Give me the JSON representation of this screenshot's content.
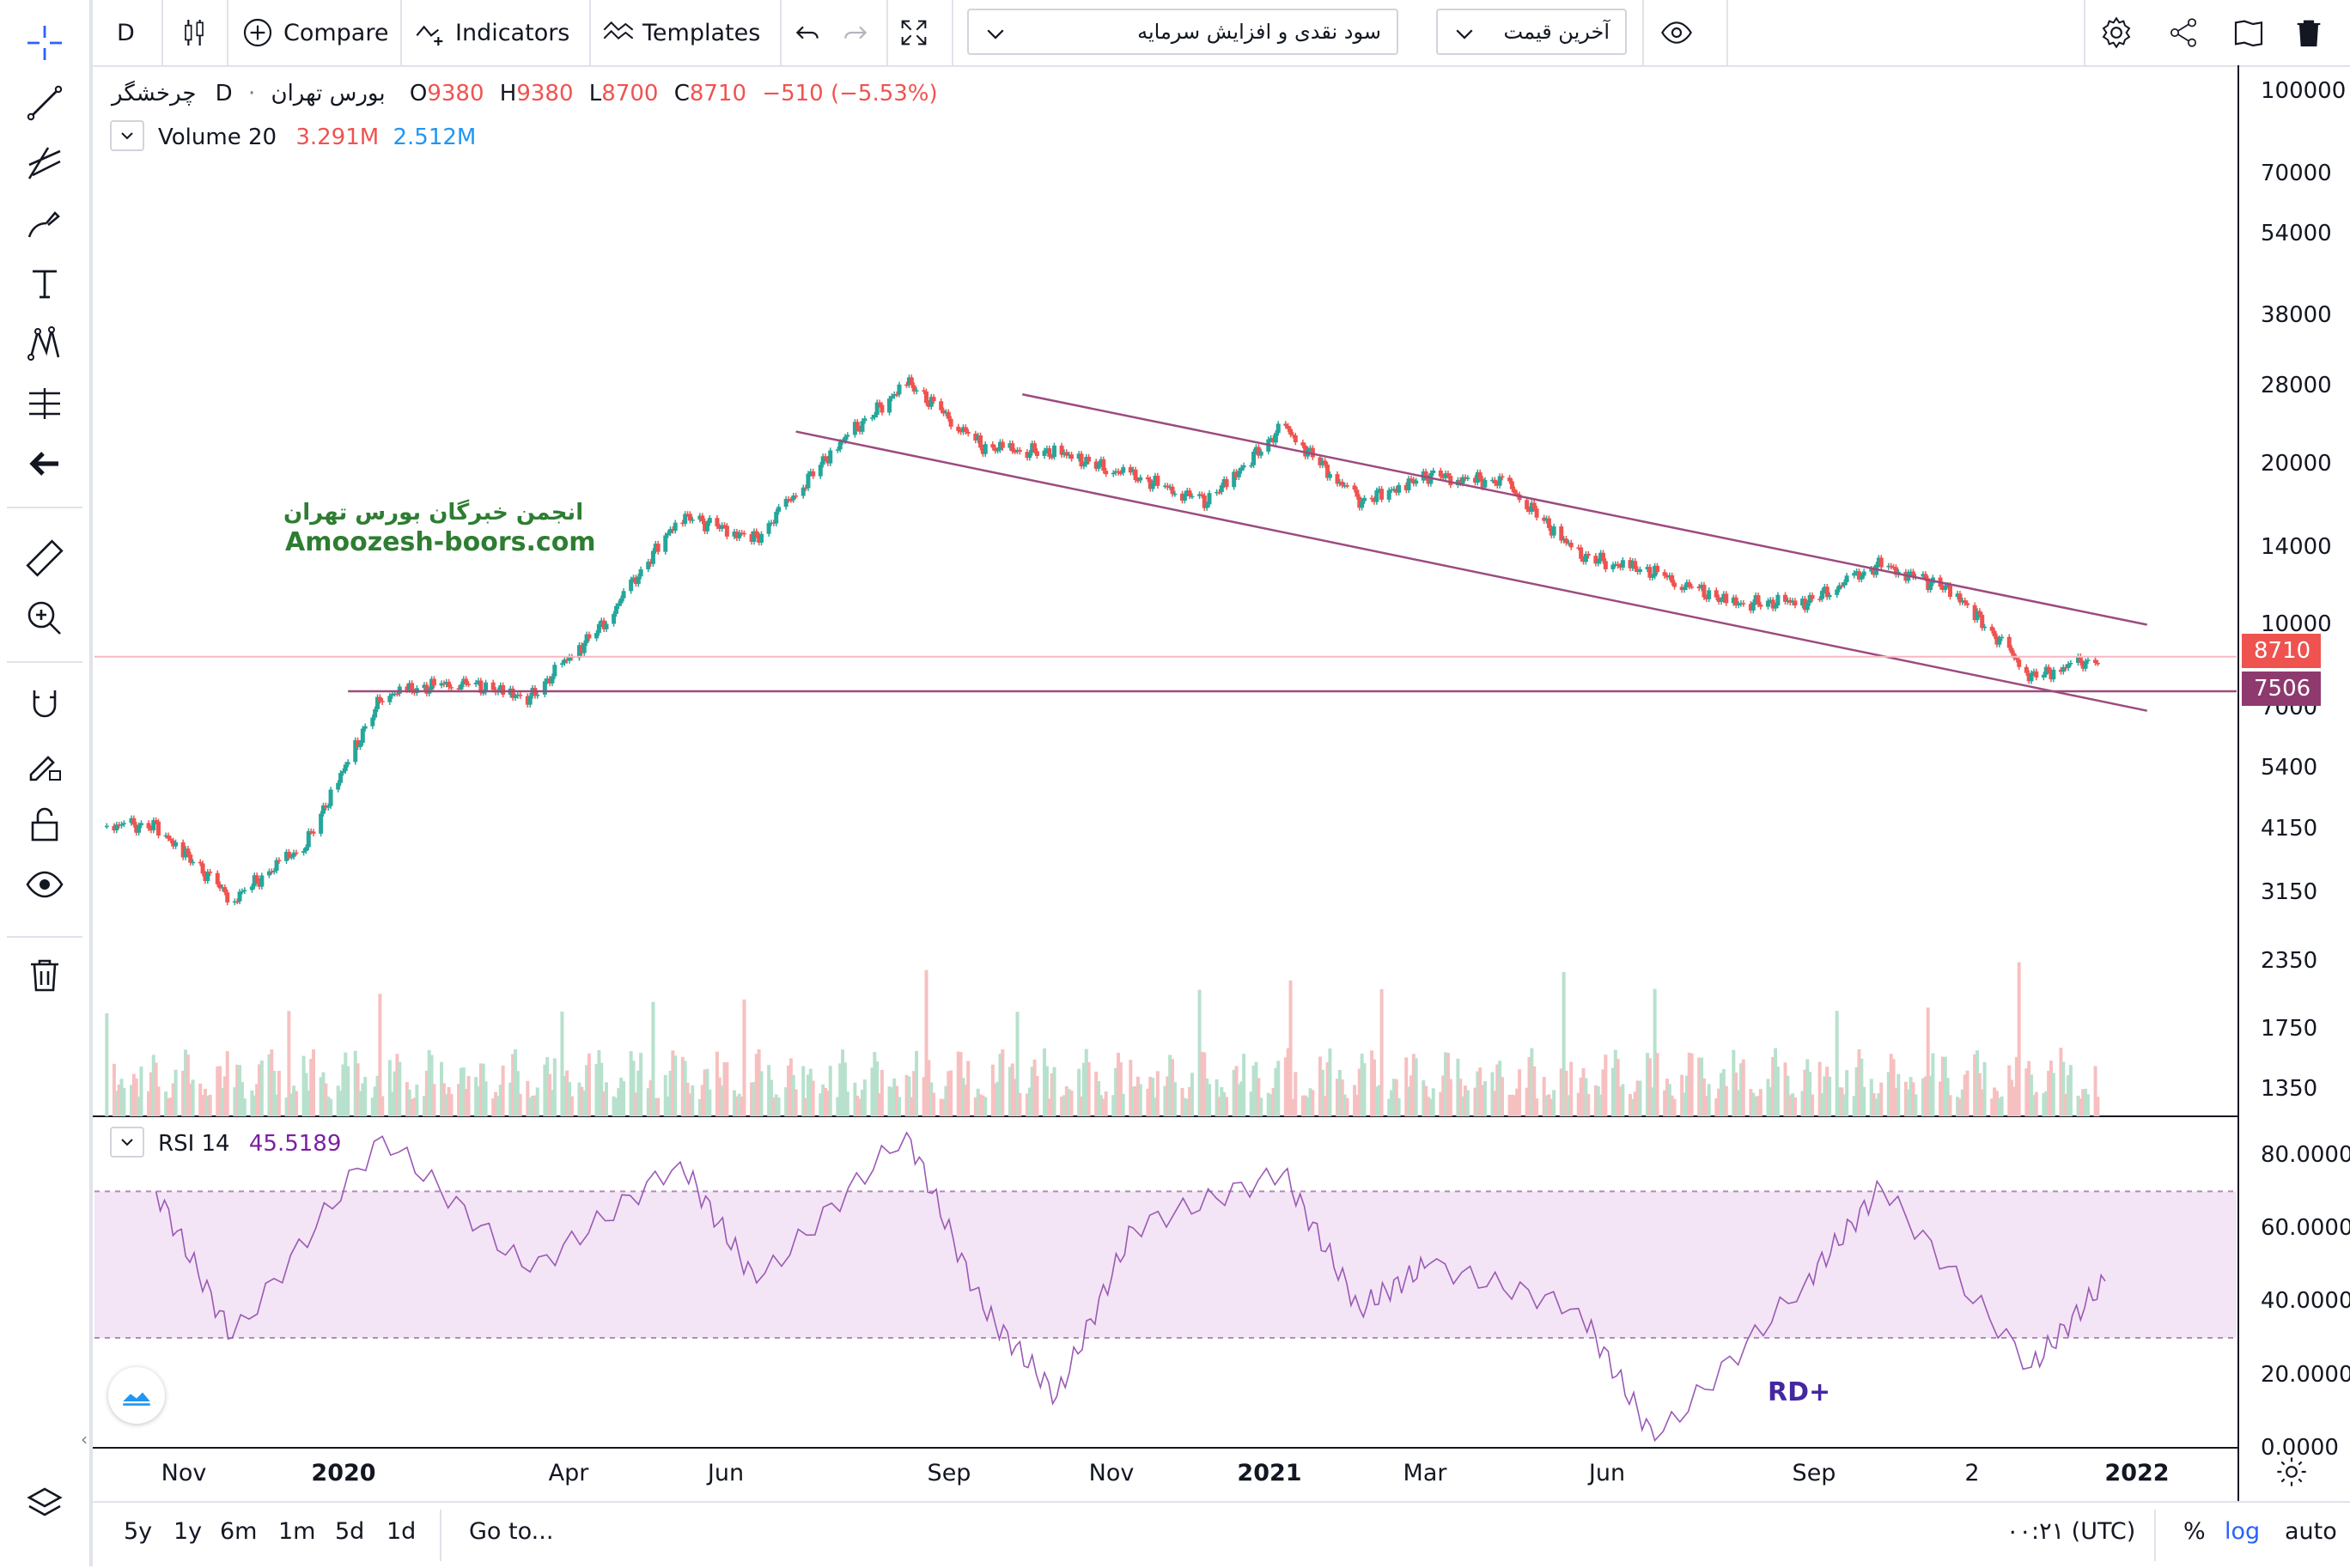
{
  "toolbar": {
    "interval": "D",
    "compare_label": "Compare",
    "indicators_label": "Indicators",
    "templates_label": "Templates",
    "dropdown_left": "سود نقدی و افزایش سرمایه",
    "dropdown_right": "آخرین قیمت"
  },
  "legend": {
    "symbol": "چرخشگر",
    "interval": "D",
    "exchange": "بورس تهران",
    "o_label": "O",
    "o_value": "9380",
    "h_label": "H",
    "h_value": "9380",
    "l_label": "L",
    "l_value": "8700",
    "c_label": "C",
    "c_value": "8710",
    "change": "−510 (−5.53%)",
    "volume_label": "Volume 20",
    "volume_value1": "3.291M",
    "volume_value2": "2.512M",
    "rsi_label": "RSI 14",
    "rsi_value": "45.5189"
  },
  "watermark": {
    "line1": "انجمن خبرگان بورس تهران",
    "line2": "Amoozesh-boors.com",
    "rd": "RD+"
  },
  "price_axis": [
    "100000",
    "70000",
    "54000",
    "38000",
    "28000",
    "20000",
    "14000",
    "10000",
    "7000",
    "5400",
    "4150",
    "3150",
    "2350",
    "1750",
    "1350"
  ],
  "rsi_axis": [
    "80.0000",
    "60.0000",
    "40.0000",
    "20.0000",
    "0.0000"
  ],
  "time_axis": [
    {
      "label": "Nov",
      "bold": false
    },
    {
      "label": "2020",
      "bold": true
    },
    {
      "label": "Apr",
      "bold": false
    },
    {
      "label": "Jun",
      "bold": false
    },
    {
      "label": "Sep",
      "bold": false
    },
    {
      "label": "Nov",
      "bold": false
    },
    {
      "label": "2021",
      "bold": true
    },
    {
      "label": "Mar",
      "bold": false
    },
    {
      "label": "Jun",
      "bold": false
    },
    {
      "label": "Sep",
      "bold": false
    },
    {
      "label": "2",
      "bold": false
    },
    {
      "label": "2022",
      "bold": true
    }
  ],
  "price_tags": {
    "last": "8710",
    "level": "7506"
  },
  "bottom": {
    "ranges": [
      "5y",
      "1y",
      "6m",
      "1m",
      "5d",
      "1d"
    ],
    "goto": "Go to...",
    "time": "۰۰:۲۱ (UTC)",
    "percent": "%",
    "log": "log",
    "auto": "auto"
  },
  "colors": {
    "up": "#26a69a",
    "down": "#ef5350",
    "channel": "#9c4b7e",
    "rsi": "#9b59b6",
    "rsi_band": "#f3e5f5",
    "last_tag": "#ef5350",
    "level_tag": "#8e3a6e"
  },
  "chart_data": {
    "type": "candlestick",
    "scale": "log",
    "close_series": [
      {
        "date": "2019-10",
        "close": 4200
      },
      {
        "date": "2019-11",
        "close": 3050
      },
      {
        "date": "2019-12",
        "close": 3900
      },
      {
        "date": "2020-01",
        "close": 7400
      },
      {
        "date": "2020-02",
        "close": 7800
      },
      {
        "date": "2020-03",
        "close": 7300
      },
      {
        "date": "2020-04",
        "close": 10200
      },
      {
        "date": "2020-05",
        "close": 16000
      },
      {
        "date": "2020-06",
        "close": 14500
      },
      {
        "date": "2020-07",
        "close": 21000
      },
      {
        "date": "2020-08",
        "close": 28500
      },
      {
        "date": "2020-09",
        "close": 21500
      },
      {
        "date": "2020-10",
        "close": 21000
      },
      {
        "date": "2020-11",
        "close": 19000
      },
      {
        "date": "2020-12",
        "close": 17000
      },
      {
        "date": "2021-01",
        "close": 23500
      },
      {
        "date": "2021-02",
        "close": 17000
      },
      {
        "date": "2021-03",
        "close": 19000
      },
      {
        "date": "2021-04",
        "close": 18500
      },
      {
        "date": "2021-05",
        "close": 13500
      },
      {
        "date": "2021-06",
        "close": 12500
      },
      {
        "date": "2021-07",
        "close": 11000
      },
      {
        "date": "2021-08",
        "close": 11000
      },
      {
        "date": "2021-09",
        "close": 13000
      },
      {
        "date": "2021-10",
        "close": 11500
      },
      {
        "date": "2021-11",
        "close": 8000
      },
      {
        "date": "2021-12",
        "close": 8710
      }
    ],
    "rsi_series": [
      {
        "date": "2019-10",
        "rsi": 70
      },
      {
        "date": "2019-11",
        "rsi": 30
      },
      {
        "date": "2020-01",
        "rsi": 85
      },
      {
        "date": "2020-03",
        "rsi": 48
      },
      {
        "date": "2020-05",
        "rsi": 78
      },
      {
        "date": "2020-06",
        "rsi": 45
      },
      {
        "date": "2020-08",
        "rsi": 86
      },
      {
        "date": "2020-09",
        "rsi": 38
      },
      {
        "date": "2020-10",
        "rsi": 14
      },
      {
        "date": "2020-11",
        "rsi": 60
      },
      {
        "date": "2021-01",
        "rsi": 75
      },
      {
        "date": "2021-02",
        "rsi": 38
      },
      {
        "date": "2021-03",
        "rsi": 50
      },
      {
        "date": "2021-05",
        "rsi": 38
      },
      {
        "date": "2021-06",
        "rsi": 2
      },
      {
        "date": "2021-08",
        "rsi": 45
      },
      {
        "date": "2021-09",
        "rsi": 71
      },
      {
        "date": "2021-11",
        "rsi": 22
      },
      {
        "date": "2021-12",
        "rsi": 45.5
      }
    ],
    "channel_upper": [
      {
        "date": "2020-10",
        "price": 27000
      },
      {
        "date": "2022-01",
        "price": 10000
      }
    ],
    "channel_lower": [
      {
        "date": "2020-07",
        "price": 23000
      },
      {
        "date": "2022-01",
        "price": 6900
      }
    ],
    "horizontal_levels": [
      8710,
      7506
    ],
    "rsi_band": [
      30,
      70
    ],
    "price_ylim": [
      1200,
      110000
    ],
    "rsi_ylim": [
      0,
      90
    ]
  }
}
